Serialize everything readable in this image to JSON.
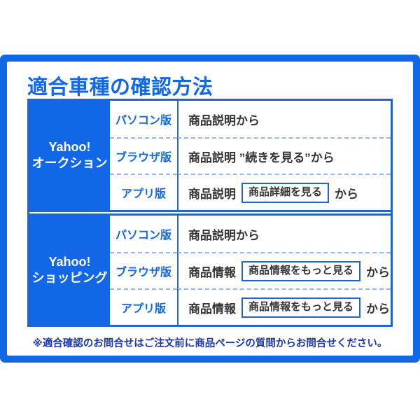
{
  "title": "適合車種の確認方法",
  "footnote": "※適合確認のお問合せはご注文前に商品ページの質問からお問合せください。",
  "colors": {
    "primary_blue": "#1267E6",
    "table_border_blue": "#2363CB",
    "dashed_separator_blue": "#96B7EB",
    "footnote_navy": "#1B38A8",
    "body_text": "#333333"
  },
  "table": {
    "groups": [
      {
        "service": {
          "line1": "Yahoo!",
          "line2": "オークション"
        },
        "rows": [
          {
            "platform": "パソコン版",
            "text": "商品説明から"
          },
          {
            "platform": "ブラウザ版",
            "text": "商品説明 ”続きを見る”から"
          },
          {
            "platform": "アプリ版",
            "text_before": "商品説明",
            "button": "商品詳細を見る",
            "text_after": "から"
          }
        ]
      },
      {
        "service": {
          "line1": "Yahoo!",
          "line2": "ショッピング"
        },
        "rows": [
          {
            "platform": "パソコン版",
            "text": "商品説明から"
          },
          {
            "platform": "ブラウザ版",
            "text_before": "商品情報",
            "button": "商品情報をもっと見る",
            "text_after": "から"
          },
          {
            "platform": "アプリ版",
            "text_before": "商品情報",
            "button": "商品情報をもっと見る",
            "text_after": "から"
          }
        ]
      }
    ]
  }
}
